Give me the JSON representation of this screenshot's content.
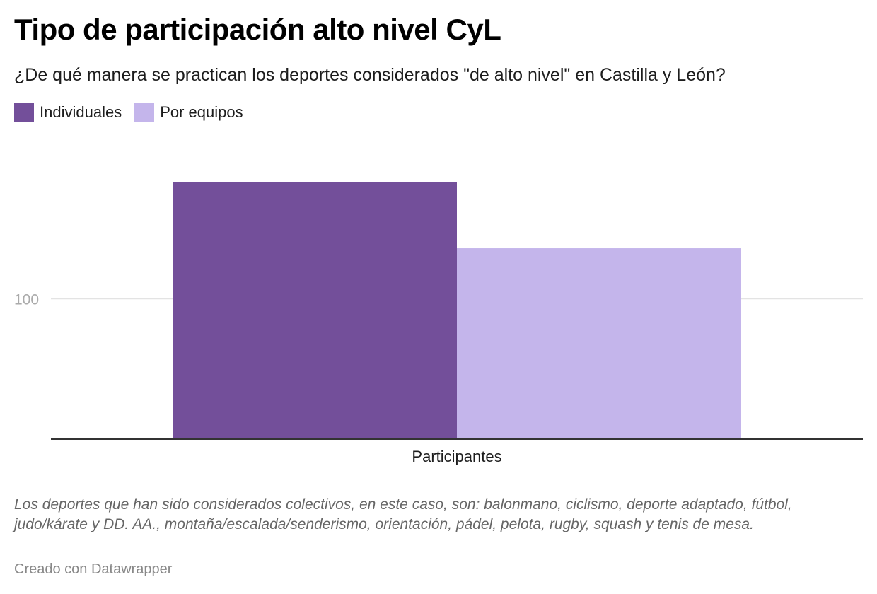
{
  "header": {
    "title": "Tipo de participación alto nivel CyL",
    "subtitle": "¿De qué manera se practican los deportes considerados \"de alto nivel\" en Castilla y León?"
  },
  "legend": {
    "items": [
      {
        "label": "Individuales",
        "color": "#734f9a"
      },
      {
        "label": "Por equipos",
        "color": "#c4b5eb"
      }
    ]
  },
  "chart_data": {
    "type": "bar",
    "categories": [
      "Participantes"
    ],
    "series": [
      {
        "name": "Individuales",
        "values": [
          183
        ],
        "color": "#734f9a"
      },
      {
        "name": "Por equipos",
        "values": [
          136
        ],
        "color": "#c4b5eb"
      }
    ],
    "ylim": [
      0,
      200
    ],
    "y_ticks": [
      100
    ],
    "y_tick_labels": [
      "100"
    ],
    "grid": true,
    "legend_position": "top-left",
    "xlabel": "",
    "ylabel": ""
  },
  "footer": {
    "notes": "Los deportes que han sido considerados colectivos, en este caso, son: balonmano, ciclismo, deporte adaptado, fútbol, judo/kárate y DD. AA., montaña/escalada/senderismo, orientación, pádel, pelota, rugby, squash y tenis de mesa.",
    "credit": "Creado con Datawrapper"
  }
}
